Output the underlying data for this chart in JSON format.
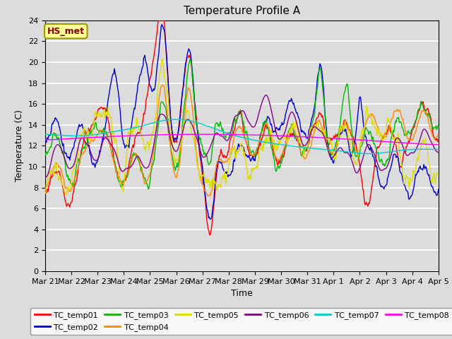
{
  "title": "Temperature Profile A",
  "xlabel": "Time",
  "ylabel": "Temperature (C)",
  "ylim": [
    0,
    24
  ],
  "annotation": "HS_met",
  "bg_color": "#dcdcdc",
  "plot_bg_color": "#dcdcdc",
  "grid_color": "white",
  "series_colors": {
    "TC_temp01": "#ff0000",
    "TC_temp02": "#0000cc",
    "TC_temp03": "#00bb00",
    "TC_temp04": "#ff8800",
    "TC_temp05": "#dddd00",
    "TC_temp06": "#880088",
    "TC_temp07": "#00cccc",
    "TC_temp08": "#ff00ff"
  },
  "tick_labels": [
    "Mar 21",
    "Mar 22",
    "Mar 23",
    "Mar 24",
    "Mar 25",
    "Mar 26",
    "Mar 27",
    "Mar 28",
    "Mar 29",
    "Mar 30",
    "Mar 31",
    "Apr 1",
    "Apr 2",
    "Apr 3",
    "Apr 4",
    "Apr 5"
  ],
  "n_points": 672
}
